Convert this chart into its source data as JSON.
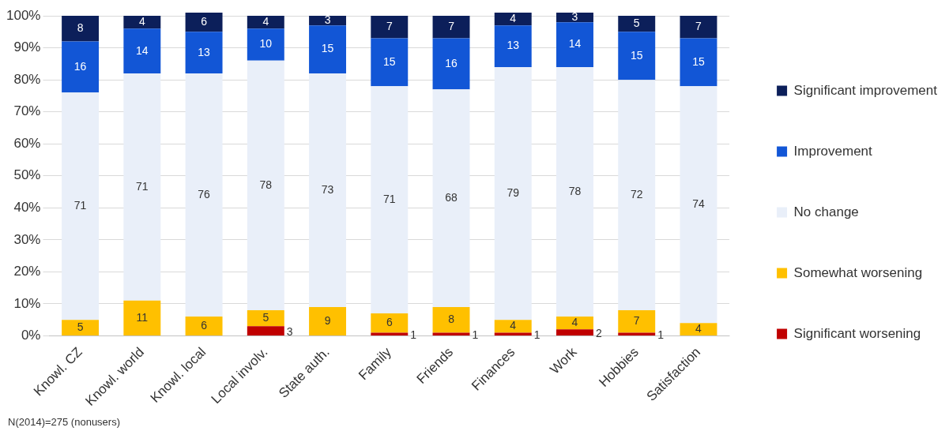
{
  "chart_data": {
    "type": "bar",
    "stacked": true,
    "categories": [
      "Knowl. CZ",
      "Knowl. world",
      "Knowl. local",
      "Local involv.",
      "State auth.",
      "Family",
      "Friends",
      "Finances",
      "Work",
      "Hobbies",
      "Satisfaction"
    ],
    "series": [
      {
        "name": "Significant worsening",
        "color": "#c00000",
        "values": [
          0,
          0,
          0,
          3,
          0,
          1,
          1,
          1,
          2,
          1,
          0
        ],
        "value_labels": [
          null,
          null,
          null,
          "3",
          null,
          "1",
          "1",
          "1",
          "2",
          "1",
          null
        ]
      },
      {
        "name": "Somewhat worsening",
        "color": "#ffc000",
        "values": [
          5,
          11,
          6,
          5,
          9,
          6,
          8,
          4,
          4,
          7,
          4
        ],
        "value_labels": [
          "5",
          "11",
          "6",
          "5",
          "9",
          "6",
          "8",
          "4",
          "4",
          "7",
          "4"
        ]
      },
      {
        "name": "No change",
        "color": "#e9eff9",
        "values": [
          71,
          71,
          76,
          78,
          73,
          71,
          68,
          79,
          78,
          72,
          74
        ],
        "value_labels": [
          "71",
          "71",
          "76",
          "78",
          "73",
          "71",
          "68",
          "79",
          "78",
          "72",
          "74"
        ]
      },
      {
        "name": "Improvement",
        "color": "#1256d6",
        "values": [
          16,
          14,
          13,
          10,
          15,
          15,
          16,
          13,
          14,
          15,
          15
        ],
        "value_labels": [
          "16",
          "14",
          "13",
          "10",
          "15",
          "15",
          "16",
          "13",
          "14",
          "15",
          "15"
        ]
      },
      {
        "name": "Significant improvement",
        "color": "#0c1f5a",
        "values": [
          8,
          4,
          6,
          4,
          3,
          7,
          7,
          4,
          3,
          5,
          7
        ],
        "value_labels": [
          "8",
          "4",
          "6",
          "4",
          "3",
          "7",
          "7",
          "4",
          "3",
          "5",
          "7"
        ]
      }
    ],
    "ylim": [
      0,
      101
    ],
    "yticks": [
      {
        "value": 0,
        "label": "0%"
      },
      {
        "value": 10,
        "label": "10%"
      },
      {
        "value": 20,
        "label": "20%"
      },
      {
        "value": 30,
        "label": "30%"
      },
      {
        "value": 40,
        "label": "40%"
      },
      {
        "value": 50,
        "label": "50%"
      },
      {
        "value": 60,
        "label": "60%"
      },
      {
        "value": 70,
        "label": "70%"
      },
      {
        "value": 80,
        "label": "80%"
      },
      {
        "value": 90,
        "label": "90%"
      },
      {
        "value": 100,
        "label": "100%"
      }
    ],
    "grid": "y",
    "legend": "right",
    "annotations": [
      "N(2014)=275 (nonusers)"
    ]
  }
}
